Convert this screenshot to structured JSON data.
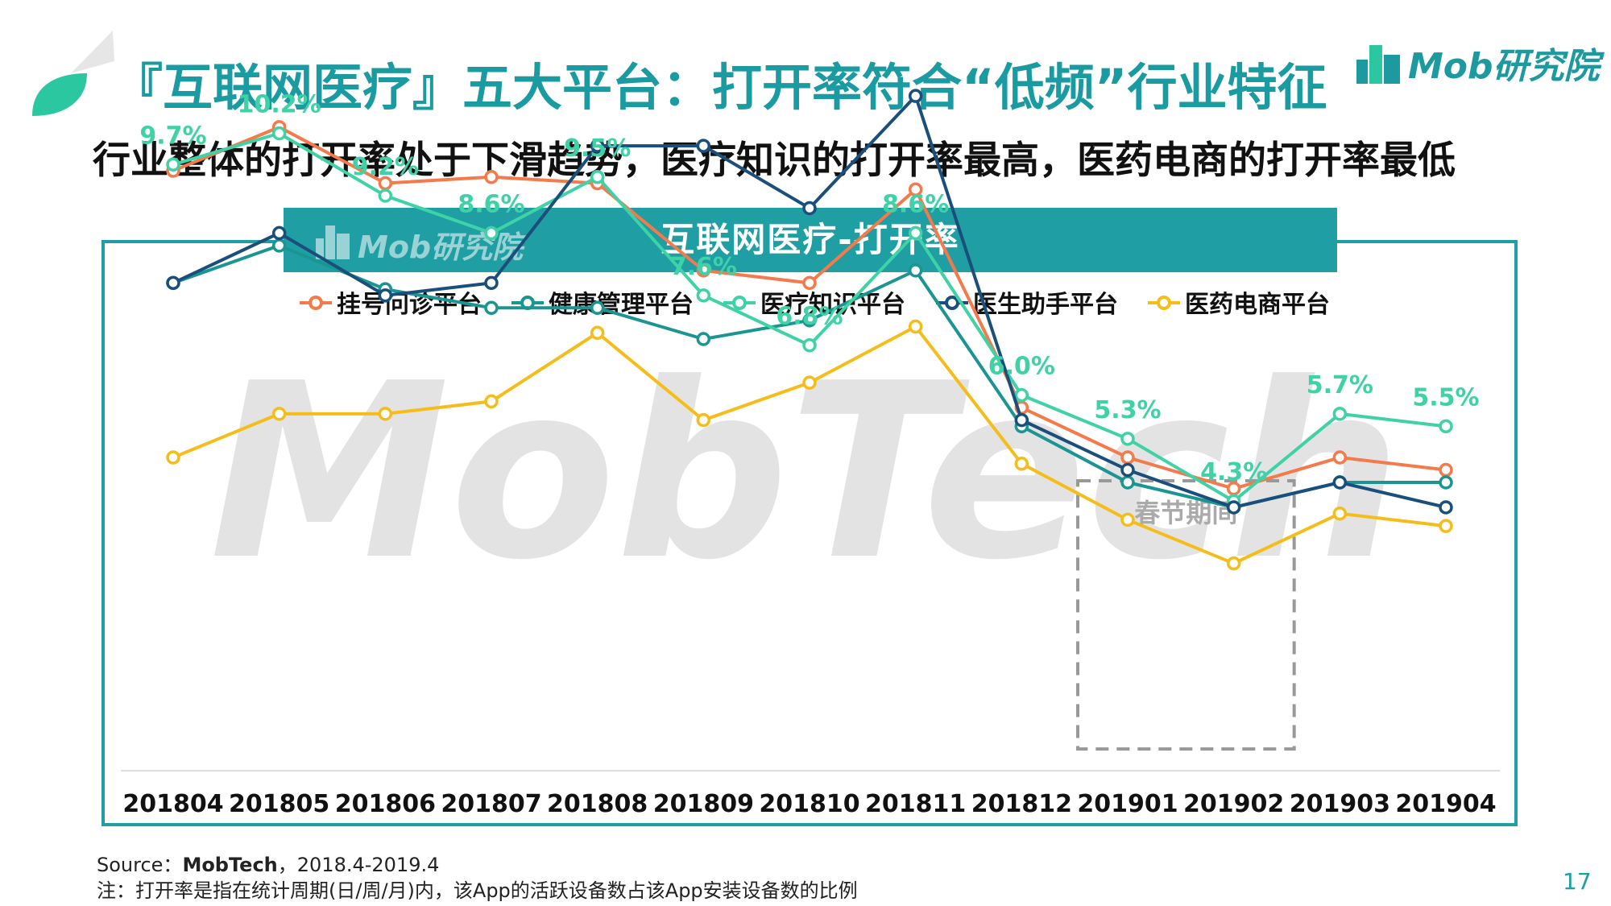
{
  "header": {
    "title": "『互联网医疗』五大平台：打开率符合“低频”行业特征",
    "subtitle": "行业整体的打开率处于下滑趋势，医疗知识的打开率最高，医药电商的打开率最低",
    "brand": "Mob研究院"
  },
  "colors": {
    "accent": "#1f9ea3",
    "title": "#1a9ba1"
  },
  "chart_data": {
    "type": "line",
    "title": "互联网医疗-打开率",
    "watermark_logo": "Mob研究院",
    "watermark": "MobTech",
    "categories": [
      "201804",
      "201805",
      "201806",
      "201807",
      "201808",
      "201809",
      "201810",
      "201811",
      "201812",
      "201901",
      "201902",
      "201903",
      "201904"
    ],
    "series": [
      {
        "name": "挂号问诊平台",
        "color": "#f47a4b",
        "values": [
          9.6,
          10.3,
          9.4,
          9.5,
          9.4,
          8.0,
          7.8,
          9.3,
          5.8,
          5.0,
          4.5,
          5.0,
          4.8
        ]
      },
      {
        "name": "健康管理平台",
        "color": "#1a9592",
        "values": [
          7.8,
          8.4,
          7.7,
          7.4,
          7.4,
          6.9,
          7.2,
          8.0,
          5.5,
          4.6,
          4.2,
          4.6,
          4.6
        ]
      },
      {
        "name": "医疗知识平台",
        "color": "#3ed2a6",
        "values": [
          9.7,
          10.2,
          9.2,
          8.6,
          9.5,
          7.6,
          6.8,
          8.6,
          6.0,
          5.3,
          4.3,
          5.7,
          5.5
        ]
      },
      {
        "name": "医生助手平台",
        "color": "#1b4f7b",
        "values": [
          7.8,
          8.6,
          7.6,
          7.8,
          10.0,
          10.0,
          9.0,
          10.8,
          5.6,
          4.8,
          4.2,
          4.6,
          4.2
        ]
      },
      {
        "name": "医药电商平台",
        "color": "#f5bd19",
        "values": [
          5.0,
          5.7,
          5.7,
          5.9,
          7.0,
          5.6,
          6.2,
          7.1,
          4.9,
          4.0,
          3.3,
          4.1,
          3.9
        ]
      }
    ],
    "data_labels": [
      "9.7%",
      "10.2%",
      "9.2%",
      "8.6%",
      "9.5%",
      "7.6%",
      "6.8%",
      "8.6%",
      "6.0%",
      "5.3%",
      "4.3%",
      "5.7%",
      "5.5%"
    ],
    "labeled_series": "医疗知识平台",
    "annotation": {
      "text": "春节期间",
      "from": "201901",
      "to": "201902"
    },
    "ylim": [
      0,
      11.5
    ],
    "grid": false,
    "legend_position": "top"
  },
  "footer": {
    "source_prefix": "Source：",
    "source_name": "MobTech",
    "source_suffix": "，2018.4-2019.4",
    "note": "注：打开率是指在统计周期(日/周/月)内，该App的活跃设备数占该App安装设备数的比例",
    "page_number": "17"
  }
}
